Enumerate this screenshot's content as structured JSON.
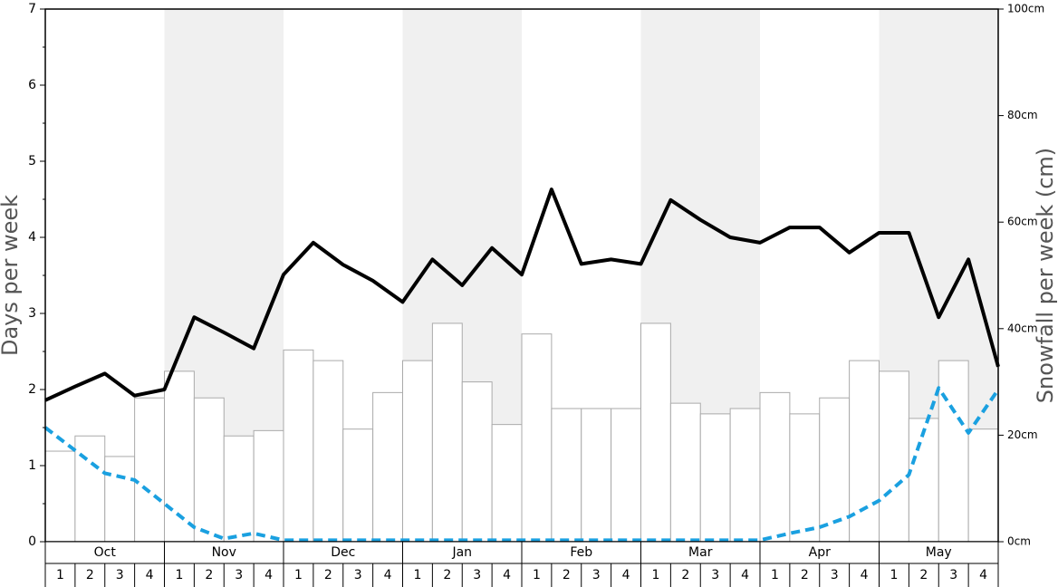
{
  "chart_data": {
    "type": "bar_line",
    "y_label": "Days per week",
    "y2_label": "Snowfall per week (cm)",
    "months": [
      "Oct",
      "Nov",
      "Dec",
      "Jan",
      "Feb",
      "Mar",
      "Apr",
      "May"
    ],
    "categories": [
      "1",
      "2",
      "3",
      "4",
      "1",
      "2",
      "3",
      "4",
      "1",
      "2",
      "3",
      "4",
      "1",
      "2",
      "3",
      "4",
      "1",
      "2",
      "3",
      "4",
      "1",
      "2",
      "3",
      "4",
      "1",
      "2",
      "3",
      "4",
      "1",
      "2",
      "3",
      "4"
    ],
    "bars": {
      "color": "#ffffff",
      "edge": "#aaaaaa",
      "values": [
        1.19,
        1.39,
        1.12,
        1.89,
        2.24,
        1.89,
        1.39,
        1.46,
        2.52,
        2.38,
        1.48,
        1.96,
        2.38,
        2.87,
        2.1,
        1.54,
        2.73,
        1.75,
        1.75,
        1.75,
        2.87,
        1.82,
        1.68,
        1.75,
        1.96,
        1.68,
        1.89,
        2.38,
        2.24,
        1.62,
        2.38,
        1.48
      ]
    },
    "x": [
      0,
      1,
      2,
      3,
      4,
      5,
      6,
      7,
      8,
      9,
      10,
      11,
      12,
      13,
      14,
      15,
      16,
      17,
      18,
      19,
      20,
      21,
      22,
      23,
      24,
      25,
      26,
      27,
      28,
      29,
      30,
      31,
      32
    ],
    "xlim": [
      0,
      32
    ],
    "series": [
      {
        "color": "#000000",
        "dashed": false,
        "values": [
          1.86,
          2.04,
          2.21,
          1.92,
          2.0,
          2.95,
          2.75,
          2.54,
          3.51,
          3.93,
          3.64,
          3.43,
          3.15,
          3.71,
          3.37,
          3.86,
          3.51,
          4.63,
          3.65,
          3.71,
          3.65,
          4.49,
          4.23,
          4.0,
          3.93,
          4.13,
          4.13,
          3.8,
          4.06,
          4.06,
          2.95,
          3.71,
          2.3
        ]
      },
      {
        "color": "#1aa0e0",
        "dashed": true,
        "values": [
          1.5,
          1.2,
          0.9,
          0.81,
          0.5,
          0.19,
          0.04,
          0.11,
          0.02,
          0.02,
          0.02,
          0.02,
          0.02,
          0.02,
          0.02,
          0.02,
          0.02,
          0.02,
          0.02,
          0.02,
          0.02,
          0.02,
          0.02,
          0.02,
          0.02,
          0.11,
          0.19,
          0.33,
          0.54,
          0.88,
          2.02,
          1.43,
          2.0
        ]
      }
    ],
    "ylim": [
      0,
      7
    ],
    "yticks": [
      0,
      1,
      2,
      3,
      4,
      5,
      6,
      7
    ],
    "y2lim": [
      0,
      100
    ],
    "y2ticks": [
      {
        "value": 0,
        "label": "0cm"
      },
      {
        "value": 20,
        "label": "20cm"
      },
      {
        "value": 40,
        "label": "40cm"
      },
      {
        "value": 60,
        "label": "60cm"
      },
      {
        "value": 80,
        "label": "80cm"
      },
      {
        "value": 100,
        "label": "100cm"
      }
    ],
    "shade": "#f0f0f0"
  }
}
